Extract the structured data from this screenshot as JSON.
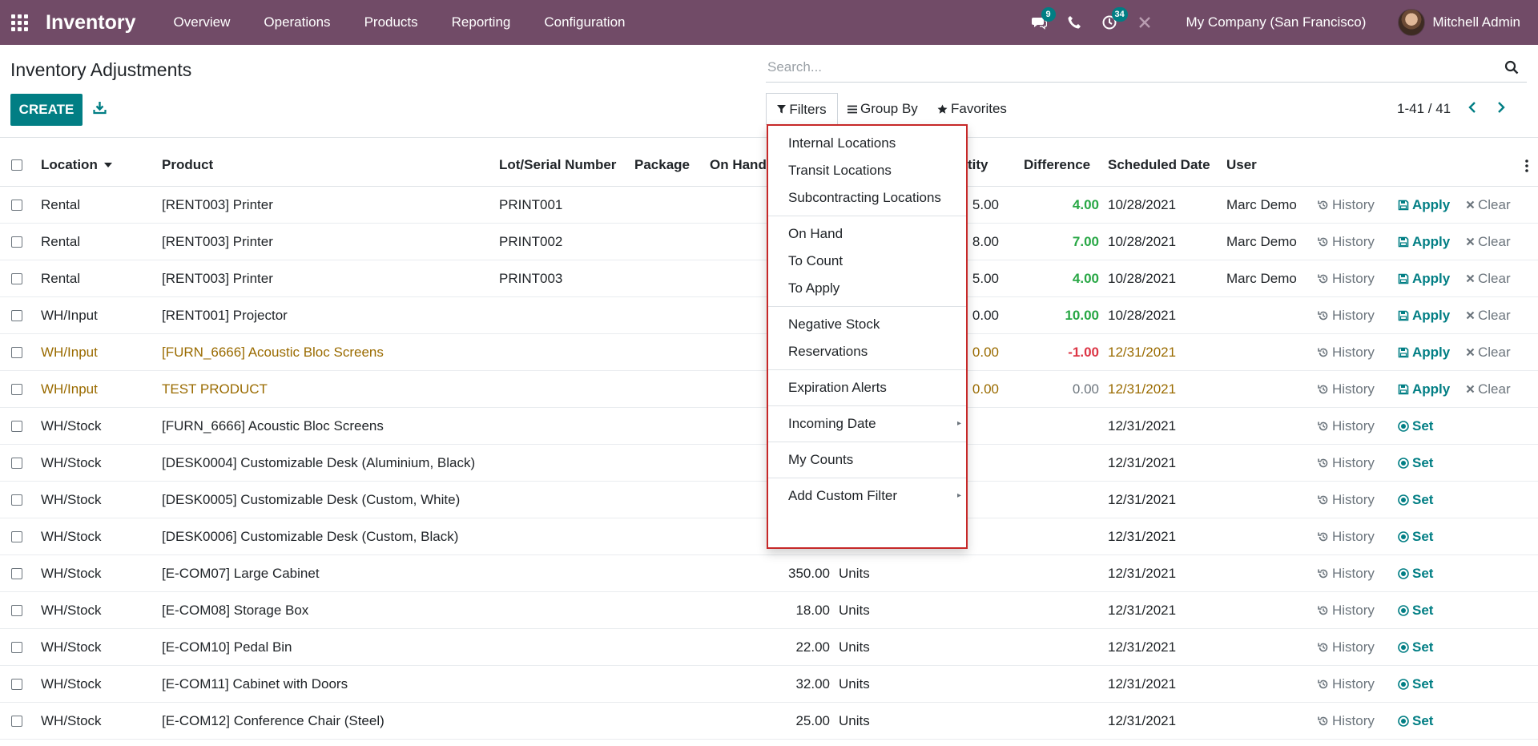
{
  "navbar": {
    "brand": "Inventory",
    "menu": [
      "Overview",
      "Operations",
      "Products",
      "Reporting",
      "Configuration"
    ],
    "messages_count": "9",
    "activities_count": "34",
    "company": "My Company (San Francisco)",
    "user": "Mitchell Admin"
  },
  "control_panel": {
    "title": "Inventory Adjustments",
    "search_placeholder": "Search...",
    "create_label": "CREATE",
    "filters_label": "Filters",
    "groupby_label": "Group By",
    "favorites_label": "Favorites",
    "pager": "1-41 / 41"
  },
  "table": {
    "headers": {
      "location": "Location",
      "product": "Product",
      "lot": "Lot/Serial Number",
      "package": "Package",
      "on_hand": "On Hand",
      "quantity": "tity",
      "difference": "Difference",
      "scheduled": "Scheduled Date",
      "user": "User"
    },
    "rows": [
      {
        "location": "Rental",
        "product": "[RENT003] Printer",
        "lot": "PRINT001",
        "on_hand": "",
        "unit": "",
        "counted": "5.00",
        "difference": "4.00",
        "diff_class": "pos",
        "date": "10/28/2021",
        "user": "Marc Demo",
        "action": "apply",
        "warn": false
      },
      {
        "location": "Rental",
        "product": "[RENT003] Printer",
        "lot": "PRINT002",
        "on_hand": "",
        "unit": "",
        "counted": "8.00",
        "difference": "7.00",
        "diff_class": "pos",
        "date": "10/28/2021",
        "user": "Marc Demo",
        "action": "apply",
        "warn": false
      },
      {
        "location": "Rental",
        "product": "[RENT003] Printer",
        "lot": "PRINT003",
        "on_hand": "",
        "unit": "",
        "counted": "5.00",
        "difference": "4.00",
        "diff_class": "pos",
        "date": "10/28/2021",
        "user": "Marc Demo",
        "action": "apply",
        "warn": false
      },
      {
        "location": "WH/Input",
        "product": "[RENT001] Projector",
        "lot": "",
        "on_hand": "",
        "unit": "",
        "counted": "0.00",
        "difference": "10.00",
        "diff_class": "pos",
        "date": "10/28/2021",
        "user": "",
        "action": "apply",
        "warn": false
      },
      {
        "location": "WH/Input",
        "product": "[FURN_6666] Acoustic Bloc Screens",
        "lot": "",
        "on_hand": "",
        "unit": "",
        "counted": "0.00",
        "difference": "-1.00",
        "diff_class": "neg",
        "date": "12/31/2021",
        "user": "",
        "action": "apply",
        "warn": true
      },
      {
        "location": "WH/Input",
        "product": "TEST PRODUCT",
        "lot": "",
        "on_hand": "",
        "unit": "",
        "counted": "0.00",
        "difference": "0.00",
        "diff_class": "zero",
        "date": "12/31/2021",
        "user": "",
        "action": "apply",
        "warn": true
      },
      {
        "location": "WH/Stock",
        "product": "[FURN_6666] Acoustic Bloc Screens",
        "lot": "",
        "on_hand": "",
        "unit": "",
        "counted": "",
        "difference": "",
        "diff_class": "",
        "date": "12/31/2021",
        "user": "",
        "action": "set",
        "warn": false
      },
      {
        "location": "WH/Stock",
        "product": "[DESK0004] Customizable Desk (Aluminium, Black)",
        "lot": "",
        "on_hand": "",
        "unit": "",
        "counted": "",
        "difference": "",
        "diff_class": "",
        "date": "12/31/2021",
        "user": "",
        "action": "set",
        "warn": false
      },
      {
        "location": "WH/Stock",
        "product": "[DESK0005] Customizable Desk (Custom, White)",
        "lot": "",
        "on_hand": "",
        "unit": "",
        "counted": "",
        "difference": "",
        "diff_class": "",
        "date": "12/31/2021",
        "user": "",
        "action": "set",
        "warn": false
      },
      {
        "location": "WH/Stock",
        "product": "[DESK0006] Customizable Desk (Custom, Black)",
        "lot": "",
        "on_hand": "",
        "unit": "",
        "counted": "",
        "difference": "",
        "diff_class": "",
        "date": "12/31/2021",
        "user": "",
        "action": "set",
        "warn": false
      },
      {
        "location": "WH/Stock",
        "product": "[E-COM07] Large Cabinet",
        "lot": "",
        "on_hand": "350.00",
        "unit": "Units",
        "counted": "",
        "difference": "",
        "diff_class": "",
        "date": "12/31/2021",
        "user": "",
        "action": "set",
        "warn": false
      },
      {
        "location": "WH/Stock",
        "product": "[E-COM08] Storage Box",
        "lot": "",
        "on_hand": "18.00",
        "unit": "Units",
        "counted": "",
        "difference": "",
        "diff_class": "",
        "date": "12/31/2021",
        "user": "",
        "action": "set",
        "warn": false
      },
      {
        "location": "WH/Stock",
        "product": "[E-COM10] Pedal Bin",
        "lot": "",
        "on_hand": "22.00",
        "unit": "Units",
        "counted": "",
        "difference": "",
        "diff_class": "",
        "date": "12/31/2021",
        "user": "",
        "action": "set",
        "warn": false
      },
      {
        "location": "WH/Stock",
        "product": "[E-COM11] Cabinet with Doors",
        "lot": "",
        "on_hand": "32.00",
        "unit": "Units",
        "counted": "",
        "difference": "",
        "diff_class": "",
        "date": "12/31/2021",
        "user": "",
        "action": "set",
        "warn": false
      },
      {
        "location": "WH/Stock",
        "product": "[E-COM12] Conference Chair (Steel)",
        "lot": "",
        "on_hand": "25.00",
        "unit": "Units",
        "counted": "",
        "difference": "",
        "diff_class": "",
        "date": "12/31/2021",
        "user": "",
        "action": "set",
        "warn": false
      }
    ],
    "labels": {
      "history": "History",
      "apply": "Apply",
      "clear": "Clear",
      "set": "Set"
    }
  },
  "filters_dropdown": {
    "groups": [
      {
        "items": [
          {
            "label": "Internal Locations"
          },
          {
            "label": "Transit Locations"
          },
          {
            "label": "Subcontracting Locations"
          }
        ]
      },
      {
        "items": [
          {
            "label": "On Hand"
          },
          {
            "label": "To Count"
          },
          {
            "label": "To Apply"
          }
        ]
      },
      {
        "items": [
          {
            "label": "Negative Stock"
          },
          {
            "label": "Reservations"
          }
        ]
      },
      {
        "items": [
          {
            "label": "Expiration Alerts"
          }
        ]
      },
      {
        "items": [
          {
            "label": "Incoming Date",
            "submenu": true
          }
        ]
      },
      {
        "items": [
          {
            "label": "My Counts"
          }
        ]
      },
      {
        "items": [
          {
            "label": "Add Custom Filter",
            "submenu": true
          }
        ]
      }
    ]
  },
  "colors": {
    "brand": "#714B67",
    "accent": "#017E84",
    "highlight_border": "#c62828"
  }
}
